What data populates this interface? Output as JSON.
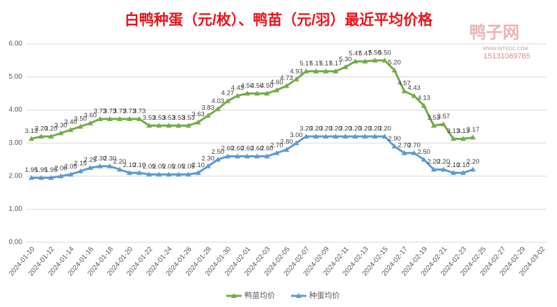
{
  "chart_data": {
    "type": "line",
    "title": "白鸭种蛋（元/枚）、鸭苗（元/羽）最近平均价格",
    "watermark": [
      "鸭子网",
      "15131069765",
      "WWW.INTEDC.COM"
    ],
    "categories": [
      "2024-01-10",
      null,
      "2024-01-12",
      null,
      "2024-01-14",
      null,
      "2024-01-16",
      null,
      "2024-01-18",
      null,
      "2024-01-20",
      null,
      "2024-01-22",
      null,
      "2024-01-24",
      null,
      "2024-01-26",
      null,
      "2024-01-28",
      null,
      "2024-01-30",
      null,
      "2024-02-01",
      null,
      "2024-02-03",
      null,
      "2024-02-05",
      null,
      "2024-02-07",
      null,
      "2024-02-09",
      null,
      "2024-02-11",
      null,
      "2024-02-13",
      null,
      "2024-02-15",
      null,
      "2024-02-17",
      null,
      "2024-02-19",
      null,
      "2024-02-21",
      null,
      "2024-02-23",
      null,
      "2024-02-25",
      null,
      "2024-02-27",
      null,
      "2024-02-29",
      null,
      "2024-03-02"
    ],
    "series": [
      {
        "name": "鸭苗均价",
        "color": "#70ad47",
        "values": [
          3.13,
          3.2,
          3.2,
          3.3,
          3.4,
          3.5,
          3.6,
          3.73,
          3.73,
          3.73,
          3.73,
          3.73,
          3.53,
          3.53,
          3.53,
          3.53,
          3.53,
          3.63,
          3.83,
          4.03,
          4.27,
          4.43,
          4.5,
          4.5,
          4.5,
          4.6,
          4.73,
          4.93,
          5.17,
          5.17,
          5.17,
          5.17,
          5.3,
          5.47,
          5.47,
          5.5,
          5.5,
          5.2,
          4.57,
          4.43,
          4.13,
          3.53,
          3.57,
          3.13,
          3.13,
          3.17,
          null,
          null,
          null,
          null,
          null,
          null,
          null
        ],
        "value_labels": [
          "3.13",
          "3.20",
          "3.20",
          "3.30",
          "3.40",
          "3.50",
          "3.60",
          "3.73",
          "3.73",
          "3.73",
          "3.73",
          "3.73",
          "3.53",
          "3.53",
          "3.53",
          "3.53",
          "3.53",
          "3.63",
          "3.83",
          "4.03",
          "4.27",
          "4.43",
          "4.50",
          "4.50",
          "4.50",
          "4.60",
          "4.73",
          "4.93",
          "5.17",
          "5.17",
          "5.17",
          "5.17",
          "5.30",
          "5.47",
          "5.47",
          "5.50",
          "5.50",
          "5.20",
          "4.57",
          "4.43",
          "4.13",
          "3.53",
          "3.57",
          "3.13",
          "3.13",
          "3.17",
          null,
          null,
          null,
          null,
          null,
          null,
          null
        ]
      },
      {
        "name": "种蛋均价",
        "color": "#5b9bd5",
        "values": [
          1.95,
          1.95,
          1.95,
          2.0,
          2.05,
          2.15,
          2.25,
          2.3,
          2.3,
          2.2,
          2.1,
          2.1,
          2.05,
          2.05,
          2.05,
          2.05,
          2.05,
          2.1,
          2.3,
          2.5,
          2.6,
          2.6,
          2.6,
          2.6,
          2.6,
          2.7,
          2.8,
          3.0,
          3.2,
          3.2,
          3.2,
          3.2,
          3.2,
          3.2,
          3.2,
          3.2,
          3.2,
          2.9,
          2.7,
          2.7,
          2.5,
          2.2,
          2.2,
          2.1,
          2.1,
          2.2,
          null,
          null,
          null,
          null,
          null,
          null,
          null
        ],
        "value_labels": [
          "1.95",
          "1.95",
          "1.95",
          "2.00",
          "2.05",
          "2.15",
          "2.25",
          "2.30",
          "2.30",
          "2.20",
          "2.10",
          "2.10",
          "2.05",
          "2.05",
          "2.05",
          "2.05",
          "2.05",
          "2.10",
          "2.30",
          "2.50",
          "2.60",
          "2.60",
          "2.60",
          "2.60",
          "2.60",
          "2.70",
          "2.80",
          "3.00",
          "3.20",
          "3.20",
          "3.20",
          "3.20",
          "3.20",
          "3.20",
          "3.20",
          "3.20",
          "3.20",
          "2.90",
          "2.70",
          "2.70",
          "2.50",
          "2.20",
          "2.20",
          "2.10",
          "2.10",
          "2.20",
          null,
          null,
          null,
          null,
          null,
          null,
          null
        ]
      }
    ],
    "ylim": [
      0,
      6
    ],
    "yticks": [
      {
        "value": 0,
        "label": "0.00"
      },
      {
        "value": 1,
        "label": "1.00"
      },
      {
        "value": 2,
        "label": "2.00"
      },
      {
        "value": 3,
        "label": "3.00"
      },
      {
        "value": 4,
        "label": "4.00"
      },
      {
        "value": 5,
        "label": "5.00"
      },
      {
        "value": 6,
        "label": "6.00"
      }
    ],
    "grid": true,
    "legend": "bottom"
  }
}
